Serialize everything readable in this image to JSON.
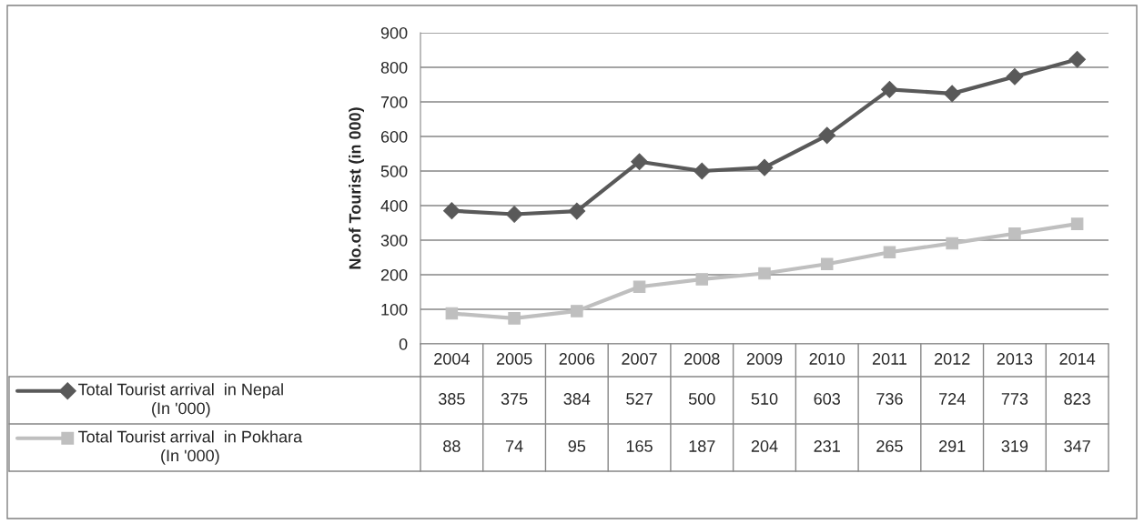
{
  "chart_data": {
    "type": "line",
    "ylabel": "No.of Tourist (in 000)",
    "categories": [
      "2004",
      "2005",
      "2006",
      "2007",
      "2008",
      "2009",
      "2010",
      "2011",
      "2012",
      "2013",
      "2014"
    ],
    "series": [
      {
        "name": "Total Tourist arrival  in Nepal\n(In '000)",
        "color": "#595959",
        "marker": "diamond",
        "values": [
          385,
          375,
          384,
          527,
          500,
          510,
          603,
          736,
          724,
          773,
          823
        ]
      },
      {
        "name": "Total Tourist arrival  in Pokhara\n(In '000)",
        "color": "#bfbfbf",
        "marker": "square",
        "values": [
          88,
          74,
          95,
          165,
          187,
          204,
          231,
          265,
          291,
          319,
          347
        ]
      }
    ],
    "ylim": [
      0,
      900
    ],
    "yticks": [
      0,
      100,
      200,
      300,
      400,
      500,
      600,
      700,
      800,
      900
    ],
    "grid": "y",
    "legend": "bottom left",
    "data_labels": true,
    "line_style": "solid"
  }
}
